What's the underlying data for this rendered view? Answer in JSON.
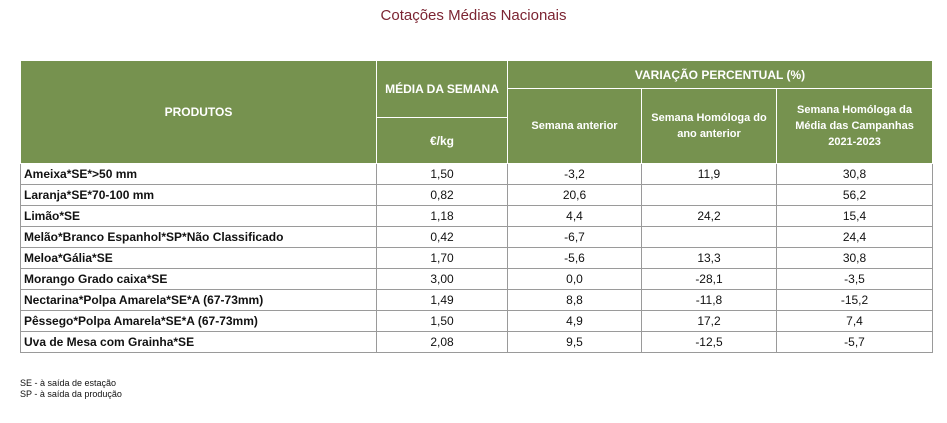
{
  "title": "Cotações Médias Nacionais",
  "header": {
    "produtos": "PRODUTOS",
    "media": "MÉDIA DA SEMANA",
    "unit": "€/kg",
    "variacao": "VARIAÇÃO PERCENTUAL (%)",
    "semana_anterior": "Semana anterior",
    "semana_homologa": "Semana Homóloga do ano anterior",
    "semana_campanhas": "Semana Homóloga da Média das Campanhas 2021-2023"
  },
  "rows": [
    {
      "produto": "Ameixa*SE*>50 mm",
      "media": "1,50",
      "anterior": "-3,2",
      "homologa": "11,9",
      "campanhas": "30,8"
    },
    {
      "produto": "Laranja*SE*70-100 mm",
      "media": "0,82",
      "anterior": "20,6",
      "homologa": "",
      "campanhas": "56,2"
    },
    {
      "produto": "Limão*SE",
      "media": "1,18",
      "anterior": "4,4",
      "homologa": "24,2",
      "campanhas": "15,4"
    },
    {
      "produto": "Melão*Branco Espanhol*SP*Não Classificado",
      "media": "0,42",
      "anterior": "-6,7",
      "homologa": "",
      "campanhas": "24,4"
    },
    {
      "produto": "Meloa*Gália*SE",
      "media": "1,70",
      "anterior": "-5,6",
      "homologa": "13,3",
      "campanhas": "30,8"
    },
    {
      "produto": "Morango Grado caixa*SE",
      "media": "3,00",
      "anterior": "0,0",
      "homologa": "-28,1",
      "campanhas": "-3,5"
    },
    {
      "produto": "Nectarina*Polpa Amarela*SE*A (67-73mm)",
      "media": "1,49",
      "anterior": "8,8",
      "homologa": "-11,8",
      "campanhas": "-15,2"
    },
    {
      "produto": "Pêssego*Polpa Amarela*SE*A (67-73mm)",
      "media": "1,50",
      "anterior": "4,9",
      "homologa": "17,2",
      "campanhas": "7,4"
    },
    {
      "produto": "Uva de Mesa com Grainha*SE",
      "media": "2,08",
      "anterior": "9,5",
      "homologa": "-12,5",
      "campanhas": "-5,7"
    }
  ],
  "notes": [
    "SE - à saída de estação",
    "SP - à saída da produção"
  ]
}
